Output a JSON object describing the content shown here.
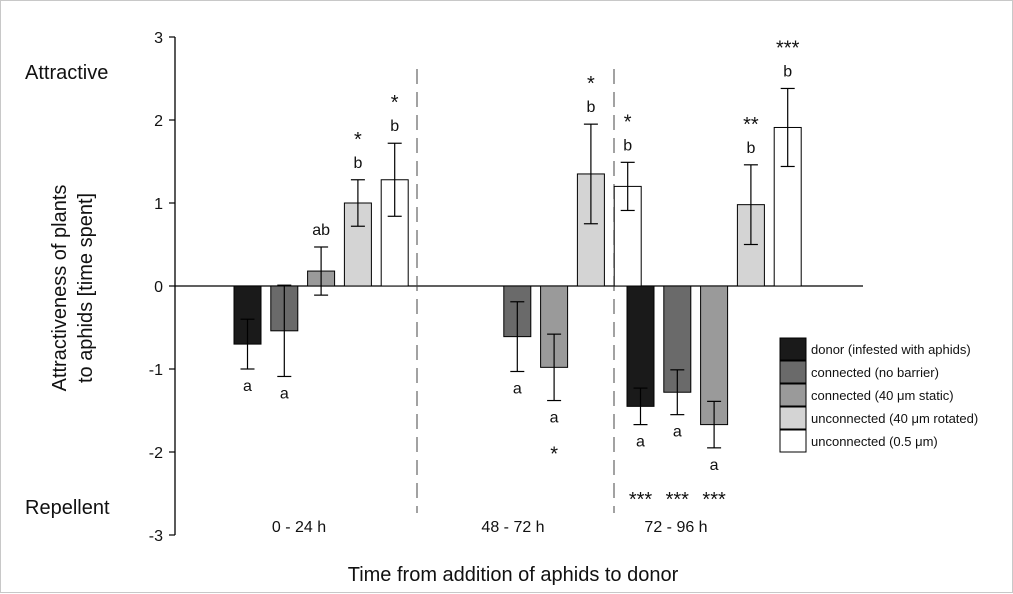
{
  "chart_data": {
    "type": "bar",
    "xlabel": "Time from addition of aphids to donor",
    "ylabel_lines": [
      "Attractiveness of plants",
      "to aphids [time spent]"
    ],
    "ylim": [
      -3,
      3
    ],
    "yticks": [
      3,
      2,
      1,
      0,
      -1,
      -2,
      -3
    ],
    "side_labels": {
      "top": "Attractive",
      "bottom": "Repellent"
    },
    "groups": [
      "0 - 24 h",
      "48 - 72 h",
      "72 - 96 h"
    ],
    "series": [
      {
        "name": "donor (infested with aphids)",
        "color": "#1a1a1a"
      },
      {
        "name": "connected (no barrier)",
        "color": "#6a6a6a"
      },
      {
        "name": "connected (40 μm static)",
        "color": "#9a9a9a"
      },
      {
        "name": "unconnected (40 μm rotated)",
        "color": "#d4d4d4"
      },
      {
        "name": "unconnected (0.5 μm)",
        "color": "#ffffff"
      }
    ],
    "bars": [
      {
        "group": 0,
        "series": 0,
        "value": -0.7,
        "err": 0.3,
        "letter": "a",
        "star": ""
      },
      {
        "group": 0,
        "series": 1,
        "value": -0.54,
        "err": 0.55,
        "letter": "a",
        "star": ""
      },
      {
        "group": 0,
        "series": 2,
        "value": 0.18,
        "err": 0.29,
        "letter": "ab",
        "star": ""
      },
      {
        "group": 0,
        "series": 3,
        "value": 1.0,
        "err": 0.28,
        "letter": "b",
        "star": "*"
      },
      {
        "group": 0,
        "series": 4,
        "value": 1.28,
        "err": 0.44,
        "letter": "b",
        "star": "*"
      },
      {
        "group": 1,
        "series": 1,
        "value": -0.61,
        "err": 0.42,
        "letter": "a",
        "star": ""
      },
      {
        "group": 1,
        "series": 2,
        "value": -0.98,
        "err": 0.4,
        "letter": "a",
        "star": "*"
      },
      {
        "group": 1,
        "series": 3,
        "value": 1.35,
        "err": 0.6,
        "letter": "b",
        "star": "*"
      },
      {
        "group": 1,
        "series": 4,
        "value": 1.2,
        "err": 0.29,
        "letter": "b",
        "star": "*"
      },
      {
        "group": 2,
        "series": 0,
        "value": -1.45,
        "err": 0.22,
        "letter": "a",
        "star": "***"
      },
      {
        "group": 2,
        "series": 1,
        "value": -1.28,
        "err": 0.27,
        "letter": "a",
        "star": "***"
      },
      {
        "group": 2,
        "series": 2,
        "value": -1.67,
        "err": 0.28,
        "letter": "a",
        "star": "***"
      },
      {
        "group": 2,
        "series": 3,
        "value": 0.98,
        "err": 0.48,
        "letter": "b",
        "star": "**"
      },
      {
        "group": 2,
        "series": 4,
        "value": 1.91,
        "err": 0.47,
        "letter": "b",
        "star": "***"
      }
    ],
    "grid": false,
    "legend": "right"
  }
}
